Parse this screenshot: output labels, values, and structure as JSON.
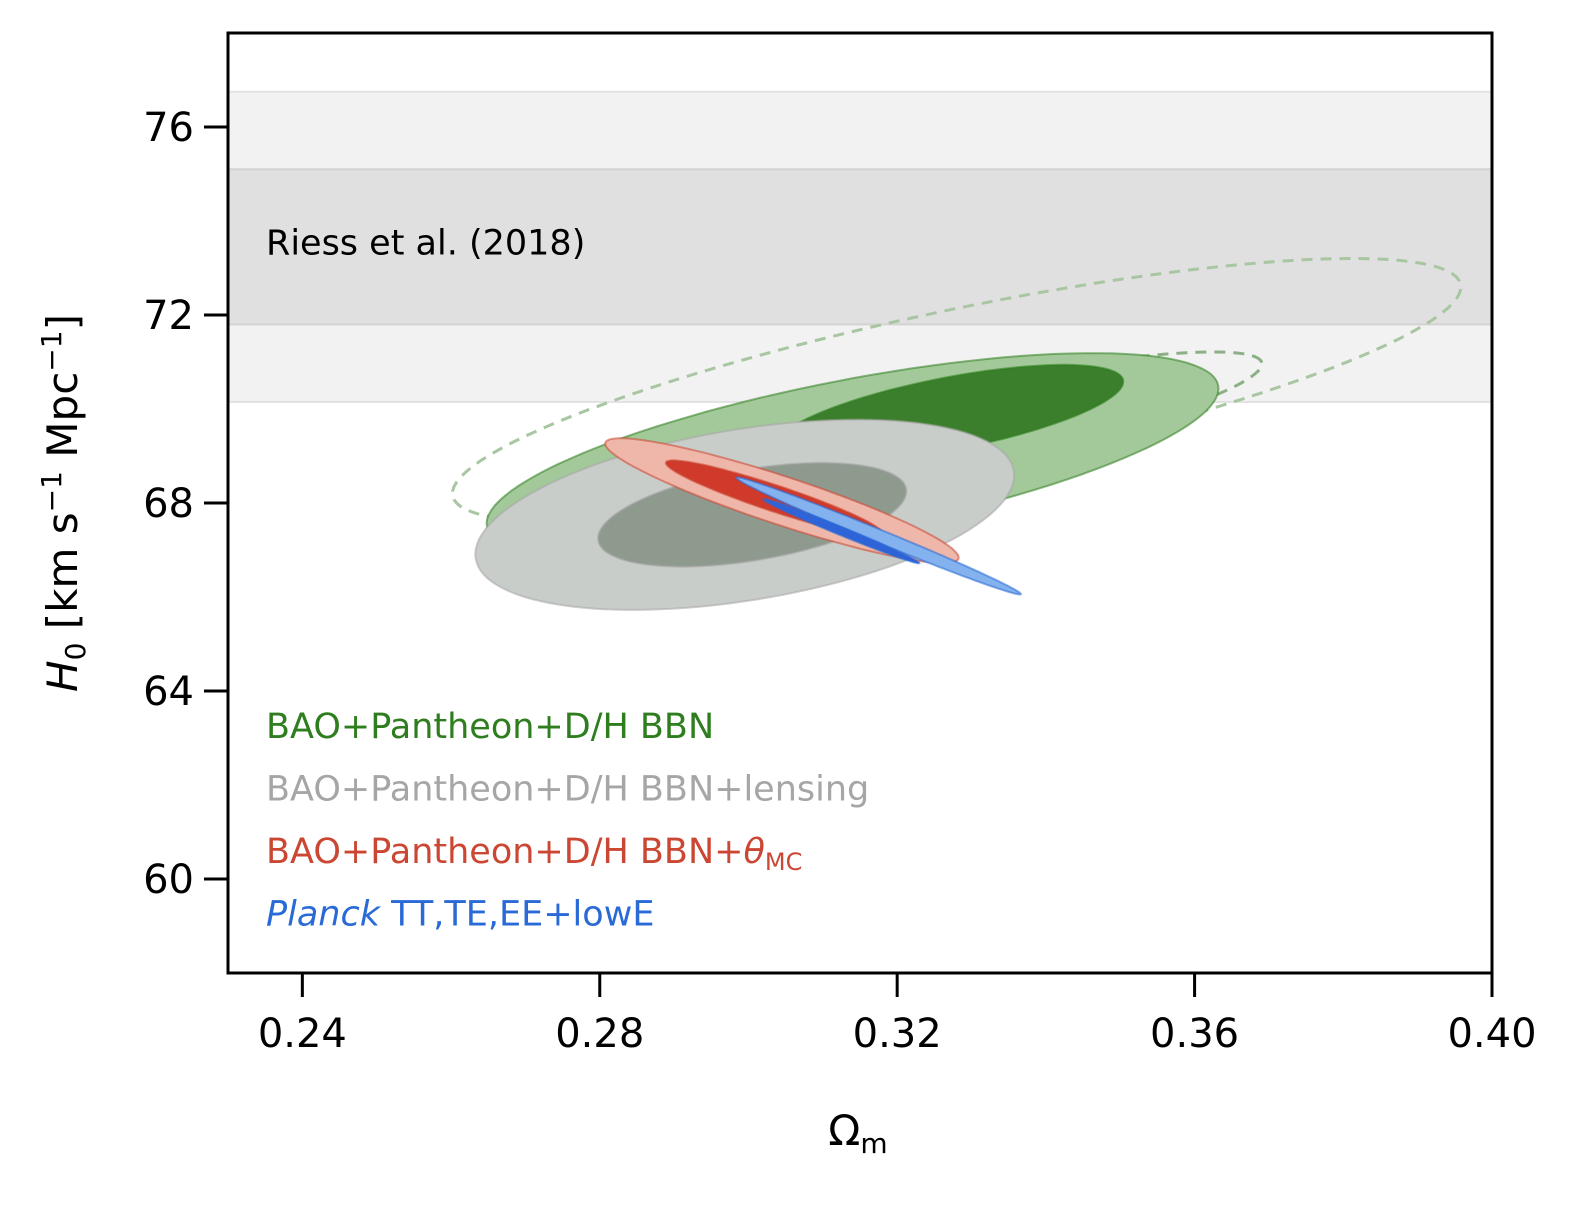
{
  "chart_data": {
    "type": "contour",
    "xlabel": {
      "main": "Ω",
      "sub": "m"
    },
    "ylabel": {
      "italic": "H",
      "sub": "0",
      "unit_open": " [km s",
      "sup1": "−1",
      "unit_mid": " Mpc",
      "sup2": "−1",
      "unit_close": "]"
    },
    "xlim": [
      0.23,
      0.4
    ],
    "ylim": [
      58,
      78
    ],
    "xticks": [
      0.24,
      0.28,
      0.32,
      0.36,
      0.4
    ],
    "xtick_labels": [
      "0.24",
      "0.28",
      "0.32",
      "0.36",
      "0.40"
    ],
    "yticks": [
      60,
      64,
      68,
      72,
      76
    ],
    "ytick_labels": [
      "60",
      "64",
      "68",
      "72",
      "76"
    ],
    "bands": [
      {
        "name": "Riess et al. (2018)",
        "center": 73.5,
        "sigma1": [
          71.8,
          75.1
        ],
        "sigma2": [
          70.15,
          76.75
        ],
        "inner_color": "#e0e0e0",
        "outer_color": "#f2f2f2"
      }
    ],
    "series": [
      {
        "name": "BAO+Pantheon+D/H BBN",
        "label_parts": [
          {
            "text": "BAO+Pantheon+D/H BBN"
          }
        ],
        "color": "#2e7d1e",
        "contours": [
          {
            "level": "2sigma",
            "center": [
              0.314,
              69.0
            ],
            "semi_major": 0.0515,
            "semi_minor": 0.0158,
            "angle_deg": 18,
            "fill": "#a3c99a"
          },
          {
            "level": "1sigma",
            "center": [
              0.327,
              69.9
            ],
            "semi_major": 0.0245,
            "semi_minor": 0.0075,
            "angle_deg": 18,
            "fill": "#3b7f2c"
          }
        ],
        "dashed_contours": [
          {
            "level": "2sigma",
            "center": [
              0.328,
              70.4
            ],
            "semi_major": 0.0715,
            "semi_minor": 0.0165,
            "angle_deg": 19,
            "stroke": "#a9c6a2"
          },
          {
            "level": "1sigma",
            "center": [
              0.325,
              69.5
            ],
            "semi_major": 0.0465,
            "semi_minor": 0.0085,
            "angle_deg": 19,
            "stroke": "#8daf86"
          }
        ]
      },
      {
        "name": "BAO+Pantheon+D/H BBN+lensing",
        "label_parts": [
          {
            "text": "BAO+Pantheon+D/H BBN+lensing"
          }
        ],
        "color": "#a6a6a6",
        "contours": [
          {
            "level": "2sigma",
            "center": [
              0.2995,
              67.75
            ],
            "semi_major": 0.0375,
            "semi_minor": 0.0178,
            "angle_deg": 17,
            "fill": "#c9cdc9"
          },
          {
            "level": "1sigma",
            "center": [
              0.3005,
              67.75
            ],
            "semi_major": 0.0215,
            "semi_minor": 0.0095,
            "angle_deg": 17,
            "fill": "#8f9a8e"
          }
        ]
      },
      {
        "name": "BAO+Pantheon+D/H BBN+θMC",
        "label_parts": [
          {
            "text": "BAO+Pantheon+D/H BBN+"
          },
          {
            "text": "θ",
            "italic": true
          },
          {
            "text": "MC",
            "sub": true
          }
        ],
        "color": "#cc4733",
        "contours": [
          {
            "level": "2sigma",
            "center": [
              0.3045,
              68.05
            ],
            "semi_major": 0.0268,
            "semi_minor": 0.0048,
            "angle_deg": -28,
            "fill": "#eeb7a9"
          },
          {
            "level": "1sigma",
            "center": [
              0.3035,
              68.1
            ],
            "semi_major": 0.0165,
            "semi_minor": 0.0026,
            "angle_deg": -28,
            "fill": "#cf3a2a"
          }
        ]
      },
      {
        "name": "Planck TT,TE,EE+lowE",
        "label_parts": [
          {
            "text": "Planck",
            "italic": true
          },
          {
            "text": " TT,TE,EE+lowE"
          }
        ],
        "color": "#2a6ad6",
        "contours": [
          {
            "level": "2sigma",
            "center": [
              0.3175,
              67.3
            ],
            "semi_major": 0.0228,
            "semi_minor": 0.00125,
            "angle_deg": -33,
            "fill": "#84b2ee"
          },
          {
            "level": "1sigma",
            "center": [
              0.3125,
              67.4
            ],
            "semi_major": 0.0125,
            "semi_minor": 0.0008,
            "angle_deg": -33,
            "fill": "#2f64d8"
          }
        ]
      }
    ],
    "legend": {
      "placement": "lower-left"
    }
  }
}
